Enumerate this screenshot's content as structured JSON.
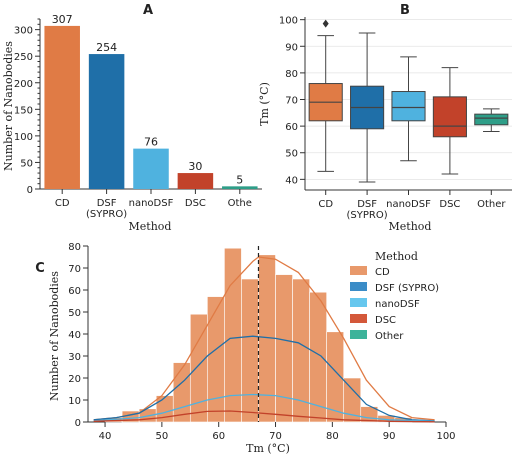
{
  "panels": {
    "A": "A",
    "B": "B",
    "C": "C"
  },
  "chart_data": [
    {
      "type": "bar",
      "panel": "A",
      "categories": [
        "CD",
        "DSF\n(SYPRO)",
        "nanoDSF",
        "DSC",
        "Othe"
      ],
      "values": [
        307,
        254,
        76,
        30,
        5
      ],
      "value_labels": [
        "307",
        "254",
        "76",
        "30",
        "5"
      ],
      "colors": [
        "#E07B45",
        "#1F6FA8",
        "#4FB2DF",
        "#C2422A",
        "#2E9E88"
      ],
      "xlabel": "Method",
      "ylabel": "Number of Nanobodies",
      "ylim": [
        0,
        320
      ],
      "yticks": [
        0,
        50,
        100,
        150,
        200,
        250,
        300
      ],
      "grid": false
    },
    {
      "type": "box",
      "panel": "B",
      "categories": [
        "CD",
        "DSF\n(SYPRO)",
        "nanoDSF",
        "DSC",
        "Other"
      ],
      "boxes": [
        {
          "whislo": 43,
          "q1": 62,
          "med": 69,
          "q3": 76,
          "whishi": 94,
          "fliers": [
            98.5
          ]
        },
        {
          "whislo": 39,
          "q1": 59,
          "med": 67,
          "q3": 75,
          "whishi": 95,
          "fliers": []
        },
        {
          "whislo": 47,
          "q1": 62,
          "med": 67,
          "q3": 73,
          "whishi": 86,
          "fliers": []
        },
        {
          "whislo": 42,
          "q1": 56,
          "med": 60,
          "q3": 71,
          "whishi": 82,
          "fliers": []
        },
        {
          "whislo": 58,
          "q1": 60.5,
          "med": 63,
          "q3": 64.5,
          "whishi": 66.5,
          "fliers": []
        }
      ],
      "colors": [
        "#E07B45",
        "#1F6FA8",
        "#4FB2DF",
        "#C2422A",
        "#2E9E88"
      ],
      "xlabel": "Method",
      "ylabel": "Tm (°C)",
      "ylim": [
        36,
        101
      ],
      "yticks": [
        40,
        50,
        60,
        70,
        80,
        90,
        100
      ],
      "grid": true
    },
    {
      "type": "histogram",
      "panel": "C",
      "stacked": true,
      "bin_edges": [
        40,
        43,
        46,
        49,
        52,
        55,
        58,
        61,
        64,
        67,
        70,
        73,
        76,
        79,
        82,
        85,
        88,
        91,
        94,
        97
      ],
      "series": [
        {
          "name": "CD",
          "color": "#E8996B",
          "values": [
            2,
            3,
            3,
            4,
            9,
            22,
            24,
            42,
            26,
            38,
            35,
            34,
            29,
            19,
            10,
            3,
            2,
            1,
            1
          ]
        },
        {
          "name": "DSF (SYPRO)",
          "color": "#3B8CC7",
          "values": [
            0,
            2,
            2,
            5,
            13,
            15,
            20,
            22,
            25,
            20,
            20,
            21,
            21,
            16,
            6,
            2,
            0,
            0,
            0
          ]
        },
        {
          "name": "nanoDSF",
          "color": "#66C7EE",
          "values": [
            0,
            0,
            1,
            2,
            3,
            8,
            8,
            9,
            8,
            14,
            10,
            8,
            7,
            5,
            4,
            2,
            1,
            1,
            0
          ]
        },
        {
          "name": "DSC",
          "color": "#D4583A",
          "values": [
            0,
            0,
            0,
            1,
            2,
            3,
            4,
            5,
            5,
            3,
            2,
            2,
            2,
            1,
            0,
            0,
            0,
            0,
            0
          ]
        },
        {
          "name": "Other",
          "color": "#3CB39A",
          "values": [
            0,
            0,
            0,
            0,
            0,
            1,
            1,
            1,
            1,
            1,
            0,
            0,
            0,
            0,
            0,
            0,
            0,
            0,
            0
          ]
        }
      ],
      "kde_lines": [
        {
          "name": "CD",
          "color": "#E07B45",
          "points": [
            [
              38,
              1
            ],
            [
              42,
              2
            ],
            [
              46,
              4
            ],
            [
              50,
              12
            ],
            [
              54,
              26
            ],
            [
              58,
              44
            ],
            [
              62,
              62
            ],
            [
              66,
              73
            ],
            [
              67,
              75
            ],
            [
              70,
              74
            ],
            [
              74,
              68
            ],
            [
              78,
              55
            ],
            [
              82,
              38
            ],
            [
              86,
              19
            ],
            [
              90,
              7
            ],
            [
              94,
              2
            ],
            [
              98,
              1
            ]
          ]
        },
        {
          "name": "DSF (SYPRO)",
          "color": "#1F6FA8",
          "points": [
            [
              38,
              1
            ],
            [
              42,
              2
            ],
            [
              46,
              4
            ],
            [
              50,
              10
            ],
            [
              54,
              19
            ],
            [
              58,
              30
            ],
            [
              62,
              38
            ],
            [
              66,
              39
            ],
            [
              70,
              38
            ],
            [
              74,
              36
            ],
            [
              78,
              30
            ],
            [
              82,
              19
            ],
            [
              86,
              8
            ],
            [
              90,
              3
            ],
            [
              94,
              1
            ],
            [
              98,
              0.5
            ]
          ]
        },
        {
          "name": "nanoDSF",
          "color": "#4FB2DF",
          "points": [
            [
              38,
              0.5
            ],
            [
              46,
              2
            ],
            [
              50,
              4
            ],
            [
              54,
              7
            ],
            [
              58,
              10
            ],
            [
              62,
              12
            ],
            [
              66,
              12.5
            ],
            [
              70,
              12
            ],
            [
              74,
              10
            ],
            [
              78,
              7
            ],
            [
              82,
              4
            ],
            [
              86,
              2
            ],
            [
              90,
              1
            ],
            [
              98,
              0.3
            ]
          ]
        },
        {
          "name": "DSC",
          "color": "#C2422A",
          "points": [
            [
              38,
              0.3
            ],
            [
              46,
              1
            ],
            [
              50,
              2
            ],
            [
              54,
              3.5
            ],
            [
              58,
              4.8
            ],
            [
              62,
              5
            ],
            [
              66,
              4.3
            ],
            [
              70,
              3.5
            ],
            [
              74,
              2.6
            ],
            [
              78,
              1.8
            ],
            [
              82,
              1
            ],
            [
              90,
              0.3
            ],
            [
              98,
              0.1
            ]
          ]
        }
      ],
      "mean_line": 67,
      "legend_title": "Method",
      "legend_placement": "top-right",
      "xlabel": "Tm (°C)",
      "ylabel": "Number of Nanobodies",
      "xlim": [
        37,
        100
      ],
      "ylim": [
        0,
        80
      ],
      "xticks": [
        40,
        50,
        60,
        70,
        80,
        90,
        100
      ],
      "yticks": [
        0,
        10,
        20,
        30,
        40,
        50,
        60,
        70,
        80
      ],
      "grid": false
    }
  ]
}
